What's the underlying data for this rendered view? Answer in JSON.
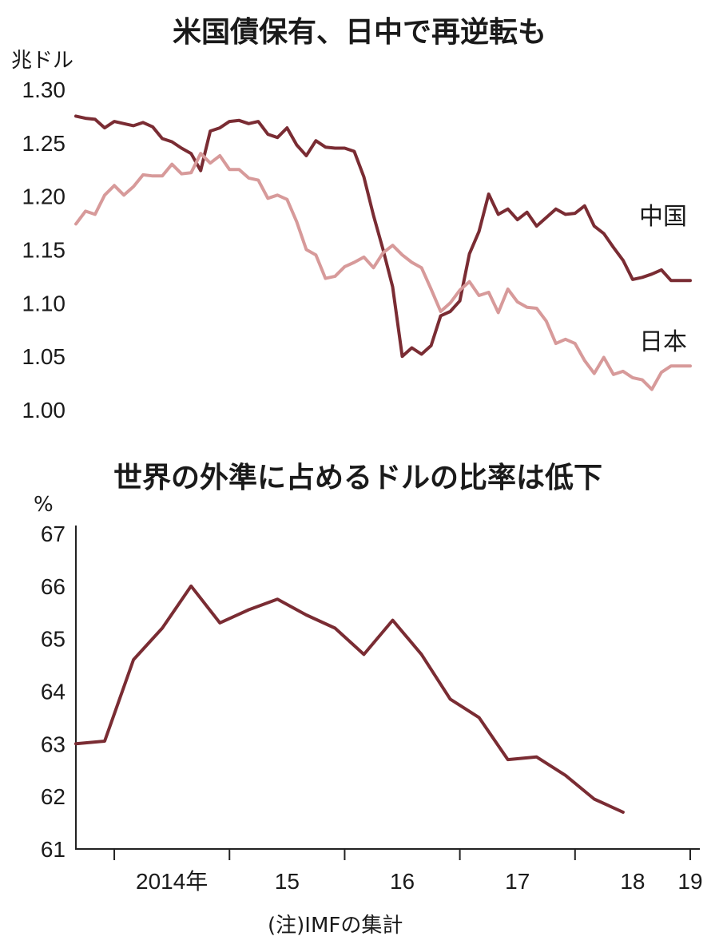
{
  "note": "(注)IMFの集計",
  "chart_data": [
    {
      "type": "line",
      "title": "米国債保有、日中で再逆転も",
      "ylabel": "兆ドル",
      "ylim": [
        1.0,
        1.3
      ],
      "yticks": [
        "1.30",
        "1.25",
        "1.20",
        "1.15",
        "1.10",
        "1.05",
        "1.00"
      ],
      "x_range": [
        "2013-09",
        "2019-02"
      ],
      "series": [
        {
          "name": "中国",
          "color": "#7a2c33",
          "x": [
            "2013-09",
            "2013-10",
            "2013-11",
            "2013-12",
            "2014-01",
            "2014-02",
            "2014-03",
            "2014-04",
            "2014-05",
            "2014-06",
            "2014-07",
            "2014-08",
            "2014-09",
            "2014-10",
            "2014-11",
            "2014-12",
            "2015-01",
            "2015-02",
            "2015-03",
            "2015-04",
            "2015-05",
            "2015-06",
            "2015-07",
            "2015-08",
            "2015-09",
            "2015-10",
            "2015-11",
            "2015-12",
            "2016-01",
            "2016-02",
            "2016-03",
            "2016-04",
            "2016-05",
            "2016-06",
            "2016-07",
            "2016-08",
            "2016-09",
            "2016-10",
            "2016-11",
            "2016-12",
            "2017-01",
            "2017-02",
            "2017-03",
            "2017-04",
            "2017-05",
            "2017-06",
            "2017-07",
            "2017-08",
            "2017-09",
            "2017-10",
            "2017-11",
            "2017-12",
            "2018-01",
            "2018-02",
            "2018-03",
            "2018-04",
            "2018-05",
            "2018-06",
            "2018-07",
            "2018-08",
            "2018-09",
            "2018-10",
            "2018-11",
            "2018-12",
            "2019-01"
          ],
          "values": [
            1.275,
            1.273,
            1.272,
            1.264,
            1.27,
            1.268,
            1.266,
            1.269,
            1.265,
            1.254,
            1.251,
            1.245,
            1.24,
            1.224,
            1.261,
            1.264,
            1.27,
            1.271,
            1.268,
            1.27,
            1.258,
            1.255,
            1.264,
            1.248,
            1.238,
            1.252,
            1.246,
            1.245,
            1.245,
            1.242,
            1.218,
            1.182,
            1.15,
            1.115,
            1.05,
            1.058,
            1.052,
            1.06,
            1.088,
            1.092,
            1.102,
            1.146,
            1.167,
            1.202,
            1.183,
            1.188,
            1.178,
            1.185,
            1.172,
            1.18,
            1.188,
            1.183,
            1.184,
            1.191,
            1.172,
            1.165,
            1.152,
            1.14,
            1.122,
            1.124,
            1.127,
            1.131,
            1.121,
            1.121,
            1.121
          ]
        },
        {
          "name": "日本",
          "color": "#d79a9a",
          "x": [
            "2013-09",
            "2013-10",
            "2013-11",
            "2013-12",
            "2014-01",
            "2014-02",
            "2014-03",
            "2014-04",
            "2014-05",
            "2014-06",
            "2014-07",
            "2014-08",
            "2014-09",
            "2014-10",
            "2014-11",
            "2014-12",
            "2015-01",
            "2015-02",
            "2015-03",
            "2015-04",
            "2015-05",
            "2015-06",
            "2015-07",
            "2015-08",
            "2015-09",
            "2015-10",
            "2015-11",
            "2015-12",
            "2016-01",
            "2016-02",
            "2016-03",
            "2016-04",
            "2016-05",
            "2016-06",
            "2016-07",
            "2016-08",
            "2016-09",
            "2016-10",
            "2016-11",
            "2016-12",
            "2017-01",
            "2017-02",
            "2017-03",
            "2017-04",
            "2017-05",
            "2017-06",
            "2017-07",
            "2017-08",
            "2017-09",
            "2017-10",
            "2017-11",
            "2017-12",
            "2018-01",
            "2018-02",
            "2018-03",
            "2018-04",
            "2018-05",
            "2018-06",
            "2018-07",
            "2018-08",
            "2018-09",
            "2018-10",
            "2018-11",
            "2018-12",
            "2019-01"
          ],
          "values": [
            1.174,
            1.186,
            1.183,
            1.201,
            1.21,
            1.201,
            1.209,
            1.22,
            1.219,
            1.219,
            1.23,
            1.221,
            1.222,
            1.24,
            1.231,
            1.238,
            1.225,
            1.225,
            1.217,
            1.215,
            1.198,
            1.201,
            1.197,
            1.176,
            1.15,
            1.145,
            1.123,
            1.125,
            1.134,
            1.138,
            1.143,
            1.133,
            1.147,
            1.154,
            1.145,
            1.138,
            1.133,
            1.113,
            1.092,
            1.1,
            1.112,
            1.12,
            1.107,
            1.11,
            1.091,
            1.113,
            1.101,
            1.096,
            1.095,
            1.083,
            1.062,
            1.066,
            1.062,
            1.046,
            1.034,
            1.049,
            1.033,
            1.036,
            1.03,
            1.028,
            1.019,
            1.035,
            1.041,
            1.041,
            1.041
          ]
        }
      ]
    },
    {
      "type": "line",
      "title": "世界の外準に占めるドルの比率は低下",
      "ylabel": "%",
      "ylim": [
        61,
        67
      ],
      "yticks": [
        "67",
        "66",
        "65",
        "64",
        "63",
        "62",
        "61"
      ],
      "xticks": [
        "2014年",
        "15",
        "16",
        "17",
        "18",
        "19"
      ],
      "x_range": [
        "2013-09",
        "2019-02"
      ],
      "series": [
        {
          "color": "#7a2c33",
          "x": [
            "2013-Q3",
            "2013-Q4",
            "2014-Q1",
            "2014-Q2",
            "2014-Q3",
            "2014-Q4",
            "2015-Q1",
            "2015-Q2",
            "2015-Q3",
            "2015-Q4",
            "2016-Q1",
            "2016-Q2",
            "2016-Q3",
            "2016-Q4",
            "2017-Q1",
            "2017-Q2",
            "2017-Q3",
            "2017-Q4",
            "2018-Q1",
            "2018-Q2",
            "2018-Q3"
          ],
          "values": [
            63.0,
            63.05,
            64.6,
            65.2,
            66.0,
            65.3,
            65.55,
            65.75,
            65.45,
            65.2,
            64.7,
            65.35,
            64.7,
            63.85,
            63.5,
            62.7,
            62.75,
            62.4,
            61.95,
            61.7,
            null
          ]
        }
      ]
    }
  ]
}
